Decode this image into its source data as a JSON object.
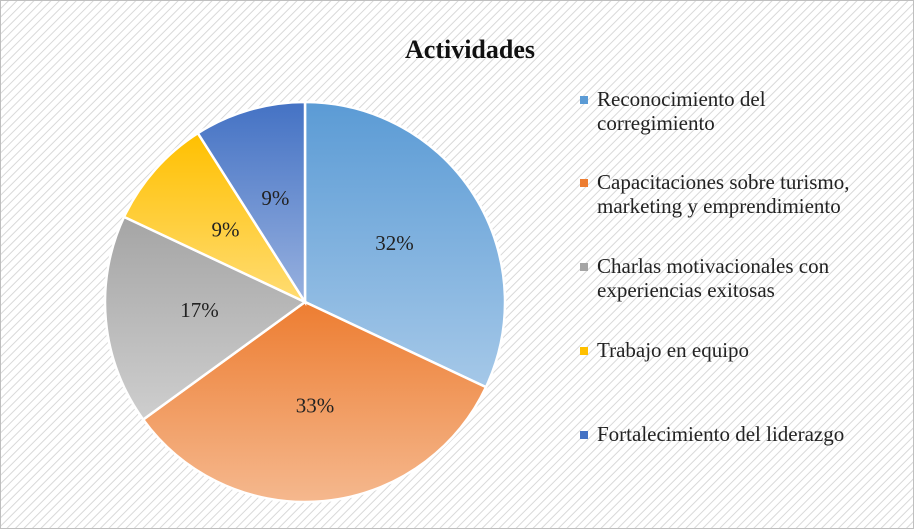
{
  "chart_data": {
    "type": "pie",
    "title": "Actividades",
    "categories": [
      "Reconocimiento del corregimiento",
      "Capacitaciones sobre turismo, marketing y emprendimiento",
      "Charlas motivacionales con experiencias exitosas",
      "Trabajo en equipo",
      "Fortalecimiento del liderazgo"
    ],
    "values": [
      32,
      33,
      17,
      9,
      9
    ],
    "value_labels": [
      "32%",
      "33%",
      "17%",
      "9%",
      "9%"
    ],
    "colors": [
      "#5b9bd5",
      "#ed7d31",
      "#a5a5a5",
      "#ffc000",
      "#4472c4"
    ],
    "legend": "right"
  }
}
